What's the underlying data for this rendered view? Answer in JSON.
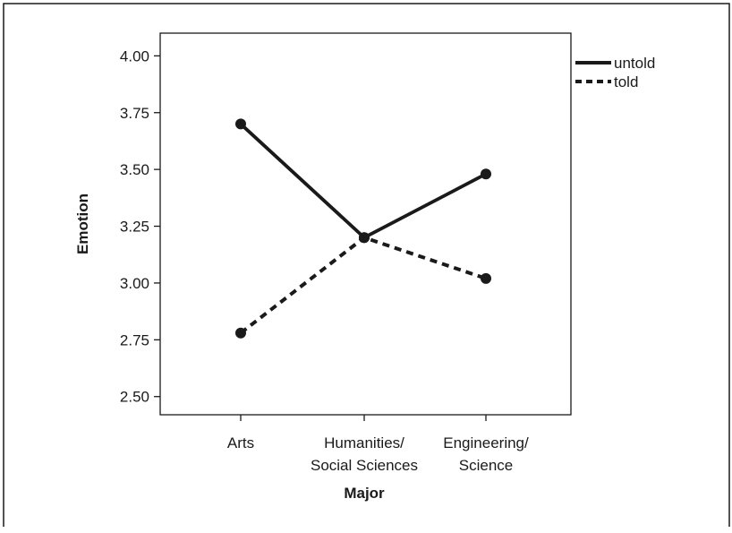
{
  "chart_data": {
    "type": "line",
    "title": "",
    "xlabel": "Major",
    "ylabel": "Emotion",
    "categories": [
      [
        "Arts"
      ],
      [
        "Humanities/",
        "Social Sciences"
      ],
      [
        "Engineering/",
        "Science"
      ]
    ],
    "ylim": [
      2.42,
      4.1
    ],
    "yticks": [
      "2.50",
      "2.75",
      "3.00",
      "3.25",
      "3.50",
      "3.75",
      "4.00"
    ],
    "grid": false,
    "legend_position": "top-right",
    "series": [
      {
        "name": "untold",
        "style": "solid",
        "values": [
          3.7,
          3.2,
          3.48
        ]
      },
      {
        "name": "told",
        "style": "dashed",
        "values": [
          2.78,
          3.2,
          3.02
        ]
      }
    ],
    "colors": {
      "line": "#1a1a1a",
      "frame": "#1a1a1a",
      "background": "#ffffff"
    }
  }
}
